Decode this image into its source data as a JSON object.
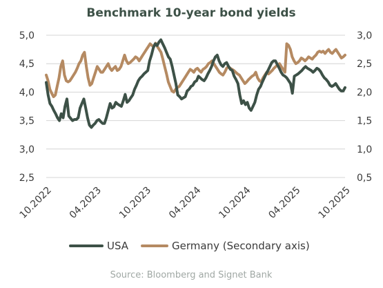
{
  "chart_data": {
    "type": "line",
    "title": "Benchmark 10-year bond yields",
    "source": "Source: Bloomberg and Signet Bank",
    "x_ticks": [
      "10.2022",
      "04.2023",
      "10.2023",
      "04.2024",
      "10.2024",
      "04.2025",
      "10.2025"
    ],
    "y_left": {
      "ylim": [
        2.5,
        5.0
      ],
      "ticks": [
        "2,5",
        "3,0",
        "3,5",
        "4,0",
        "4,5",
        "5,0"
      ]
    },
    "y_right": {
      "ylim": [
        0.5,
        3.0
      ],
      "ticks": [
        "0,5",
        "1,0",
        "1,5",
        "2,0",
        "2,5",
        "3,0"
      ]
    },
    "grid": true,
    "legend_position": "bottom",
    "x_start": "2022-10",
    "x_end": "2025-10",
    "series": [
      {
        "name": "USA",
        "axis": "left",
        "color": "#3d5147",
        "values": [
          4.17,
          3.95,
          3.8,
          3.75,
          3.68,
          3.62,
          3.55,
          3.5,
          3.62,
          3.55,
          3.75,
          3.88,
          3.58,
          3.54,
          3.5,
          3.52,
          3.52,
          3.55,
          3.72,
          3.8,
          3.88,
          3.72,
          3.55,
          3.42,
          3.38,
          3.42,
          3.45,
          3.5,
          3.52,
          3.48,
          3.45,
          3.45,
          3.55,
          3.68,
          3.8,
          3.72,
          3.74,
          3.82,
          3.79,
          3.77,
          3.75,
          3.85,
          3.96,
          3.82,
          3.85,
          3.9,
          3.95,
          4.05,
          4.12,
          4.2,
          4.25,
          4.28,
          4.32,
          4.35,
          4.38,
          4.55,
          4.65,
          4.78,
          4.85,
          4.82,
          4.88,
          4.92,
          4.85,
          4.78,
          4.7,
          4.62,
          4.58,
          4.45,
          4.3,
          4.15,
          3.95,
          3.92,
          3.88,
          3.9,
          3.92,
          4.02,
          4.05,
          4.1,
          4.12,
          4.18,
          4.2,
          4.28,
          4.25,
          4.22,
          4.2,
          4.25,
          4.32,
          4.38,
          4.45,
          4.55,
          4.62,
          4.65,
          4.55,
          4.48,
          4.45,
          4.5,
          4.52,
          4.45,
          4.4,
          4.38,
          4.28,
          4.22,
          4.15,
          3.95,
          3.8,
          3.85,
          3.78,
          3.82,
          3.72,
          3.68,
          3.75,
          3.82,
          3.95,
          4.05,
          4.1,
          4.18,
          4.25,
          4.32,
          4.38,
          4.45,
          4.52,
          4.55,
          4.55,
          4.48,
          4.42,
          4.35,
          4.3,
          4.28,
          4.25,
          4.2,
          4.15,
          3.98,
          4.28,
          4.3,
          4.32,
          4.35,
          4.38,
          4.42,
          4.45,
          4.42,
          4.4,
          4.38,
          4.35,
          4.38,
          4.42,
          4.4,
          4.36,
          4.3,
          4.25,
          4.22,
          4.18,
          4.12,
          4.1,
          4.12,
          4.15,
          4.1,
          4.05,
          4.02,
          4.02,
          4.08
        ]
      },
      {
        "name": "Germany (Secondary axis)",
        "axis": "right",
        "color": "#b58a62",
        "values": [
          2.3,
          2.2,
          2.05,
          1.98,
          1.92,
          1.95,
          2.1,
          2.25,
          2.45,
          2.55,
          2.3,
          2.2,
          2.18,
          2.2,
          2.25,
          2.3,
          2.35,
          2.42,
          2.5,
          2.55,
          2.65,
          2.7,
          2.45,
          2.25,
          2.12,
          2.15,
          2.25,
          2.35,
          2.45,
          2.4,
          2.35,
          2.35,
          2.4,
          2.45,
          2.5,
          2.42,
          2.38,
          2.42,
          2.45,
          2.38,
          2.4,
          2.45,
          2.55,
          2.65,
          2.55,
          2.5,
          2.52,
          2.55,
          2.58,
          2.62,
          2.6,
          2.55,
          2.6,
          2.65,
          2.7,
          2.75,
          2.8,
          2.85,
          2.82,
          2.8,
          2.86,
          2.8,
          2.75,
          2.7,
          2.58,
          2.45,
          2.32,
          2.18,
          2.1,
          2.02,
          2.0,
          2.05,
          2.08,
          2.1,
          2.15,
          2.2,
          2.25,
          2.3,
          2.35,
          2.4,
          2.38,
          2.35,
          2.4,
          2.42,
          2.38,
          2.35,
          2.4,
          2.42,
          2.45,
          2.5,
          2.52,
          2.55,
          2.5,
          2.45,
          2.4,
          2.35,
          2.32,
          2.3,
          2.35,
          2.42,
          2.45,
          2.42,
          2.4,
          2.38,
          2.35,
          2.32,
          2.3,
          2.25,
          2.2,
          2.15,
          2.18,
          2.22,
          2.25,
          2.28,
          2.3,
          2.35,
          2.25,
          2.2,
          2.18,
          2.25,
          2.3,
          2.35,
          2.32,
          2.35,
          2.38,
          2.42,
          2.45,
          2.48,
          2.5,
          2.45,
          2.4,
          2.35,
          2.85,
          2.82,
          2.75,
          2.62,
          2.55,
          2.5,
          2.52,
          2.55,
          2.6,
          2.58,
          2.55,
          2.58,
          2.62,
          2.6,
          2.58,
          2.62,
          2.65,
          2.7,
          2.72,
          2.7,
          2.72,
          2.68,
          2.72,
          2.75,
          2.7,
          2.68,
          2.72,
          2.75,
          2.7,
          2.65,
          2.6,
          2.62,
          2.65
        ]
      }
    ]
  }
}
